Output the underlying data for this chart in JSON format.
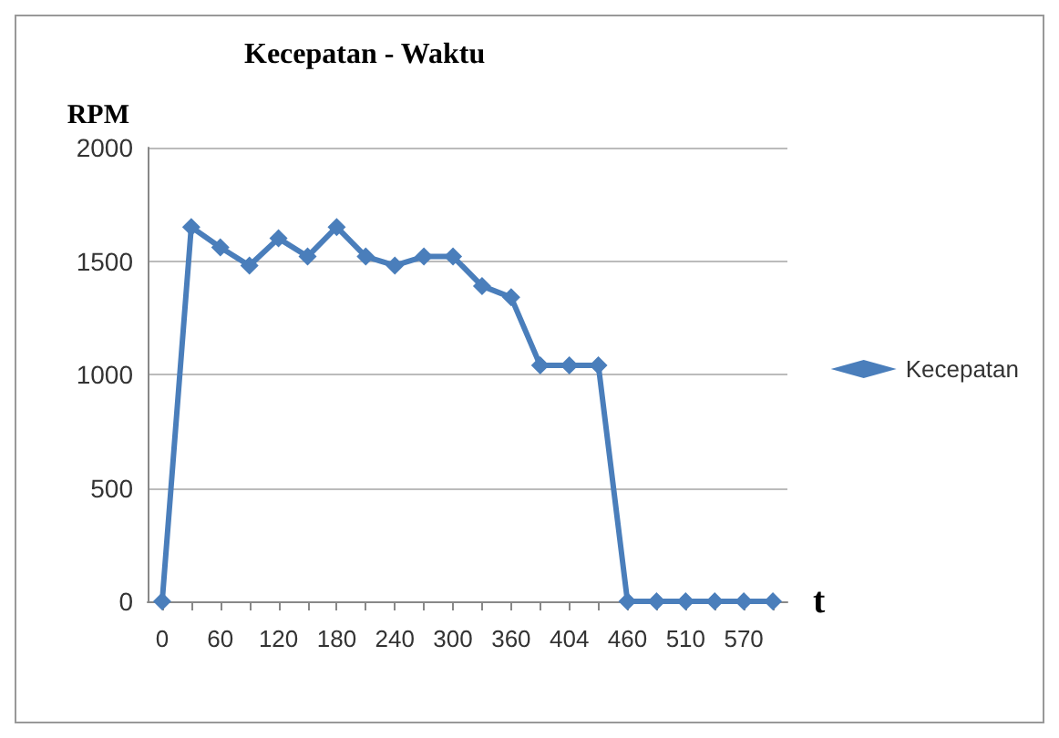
{
  "chart_data": {
    "type": "line",
    "title": "Kecepatan - Waktu",
    "ylabel": "RPM",
    "xlabel": "t",
    "categories": [
      "0",
      null,
      "60",
      null,
      "120",
      null,
      "180",
      null,
      "240",
      null,
      "300",
      null,
      "360",
      null,
      "404",
      null,
      "460",
      null,
      "510",
      null,
      "570",
      null
    ],
    "series": [
      {
        "name": "Kecepatan",
        "color": "#4a7ebb",
        "values": [
          0,
          1650,
          1560,
          1480,
          1600,
          1520,
          1650,
          1520,
          1480,
          1520,
          1520,
          1390,
          1340,
          1040,
          1040,
          1040,
          0,
          0,
          0,
          0,
          0,
          0
        ]
      }
    ],
    "ylim": [
      0,
      2000
    ],
    "yticks": [
      0,
      500,
      1000,
      1500,
      2000
    ],
    "grid": "y",
    "legend": "right",
    "marker": "diamond",
    "line_style": "solid"
  }
}
